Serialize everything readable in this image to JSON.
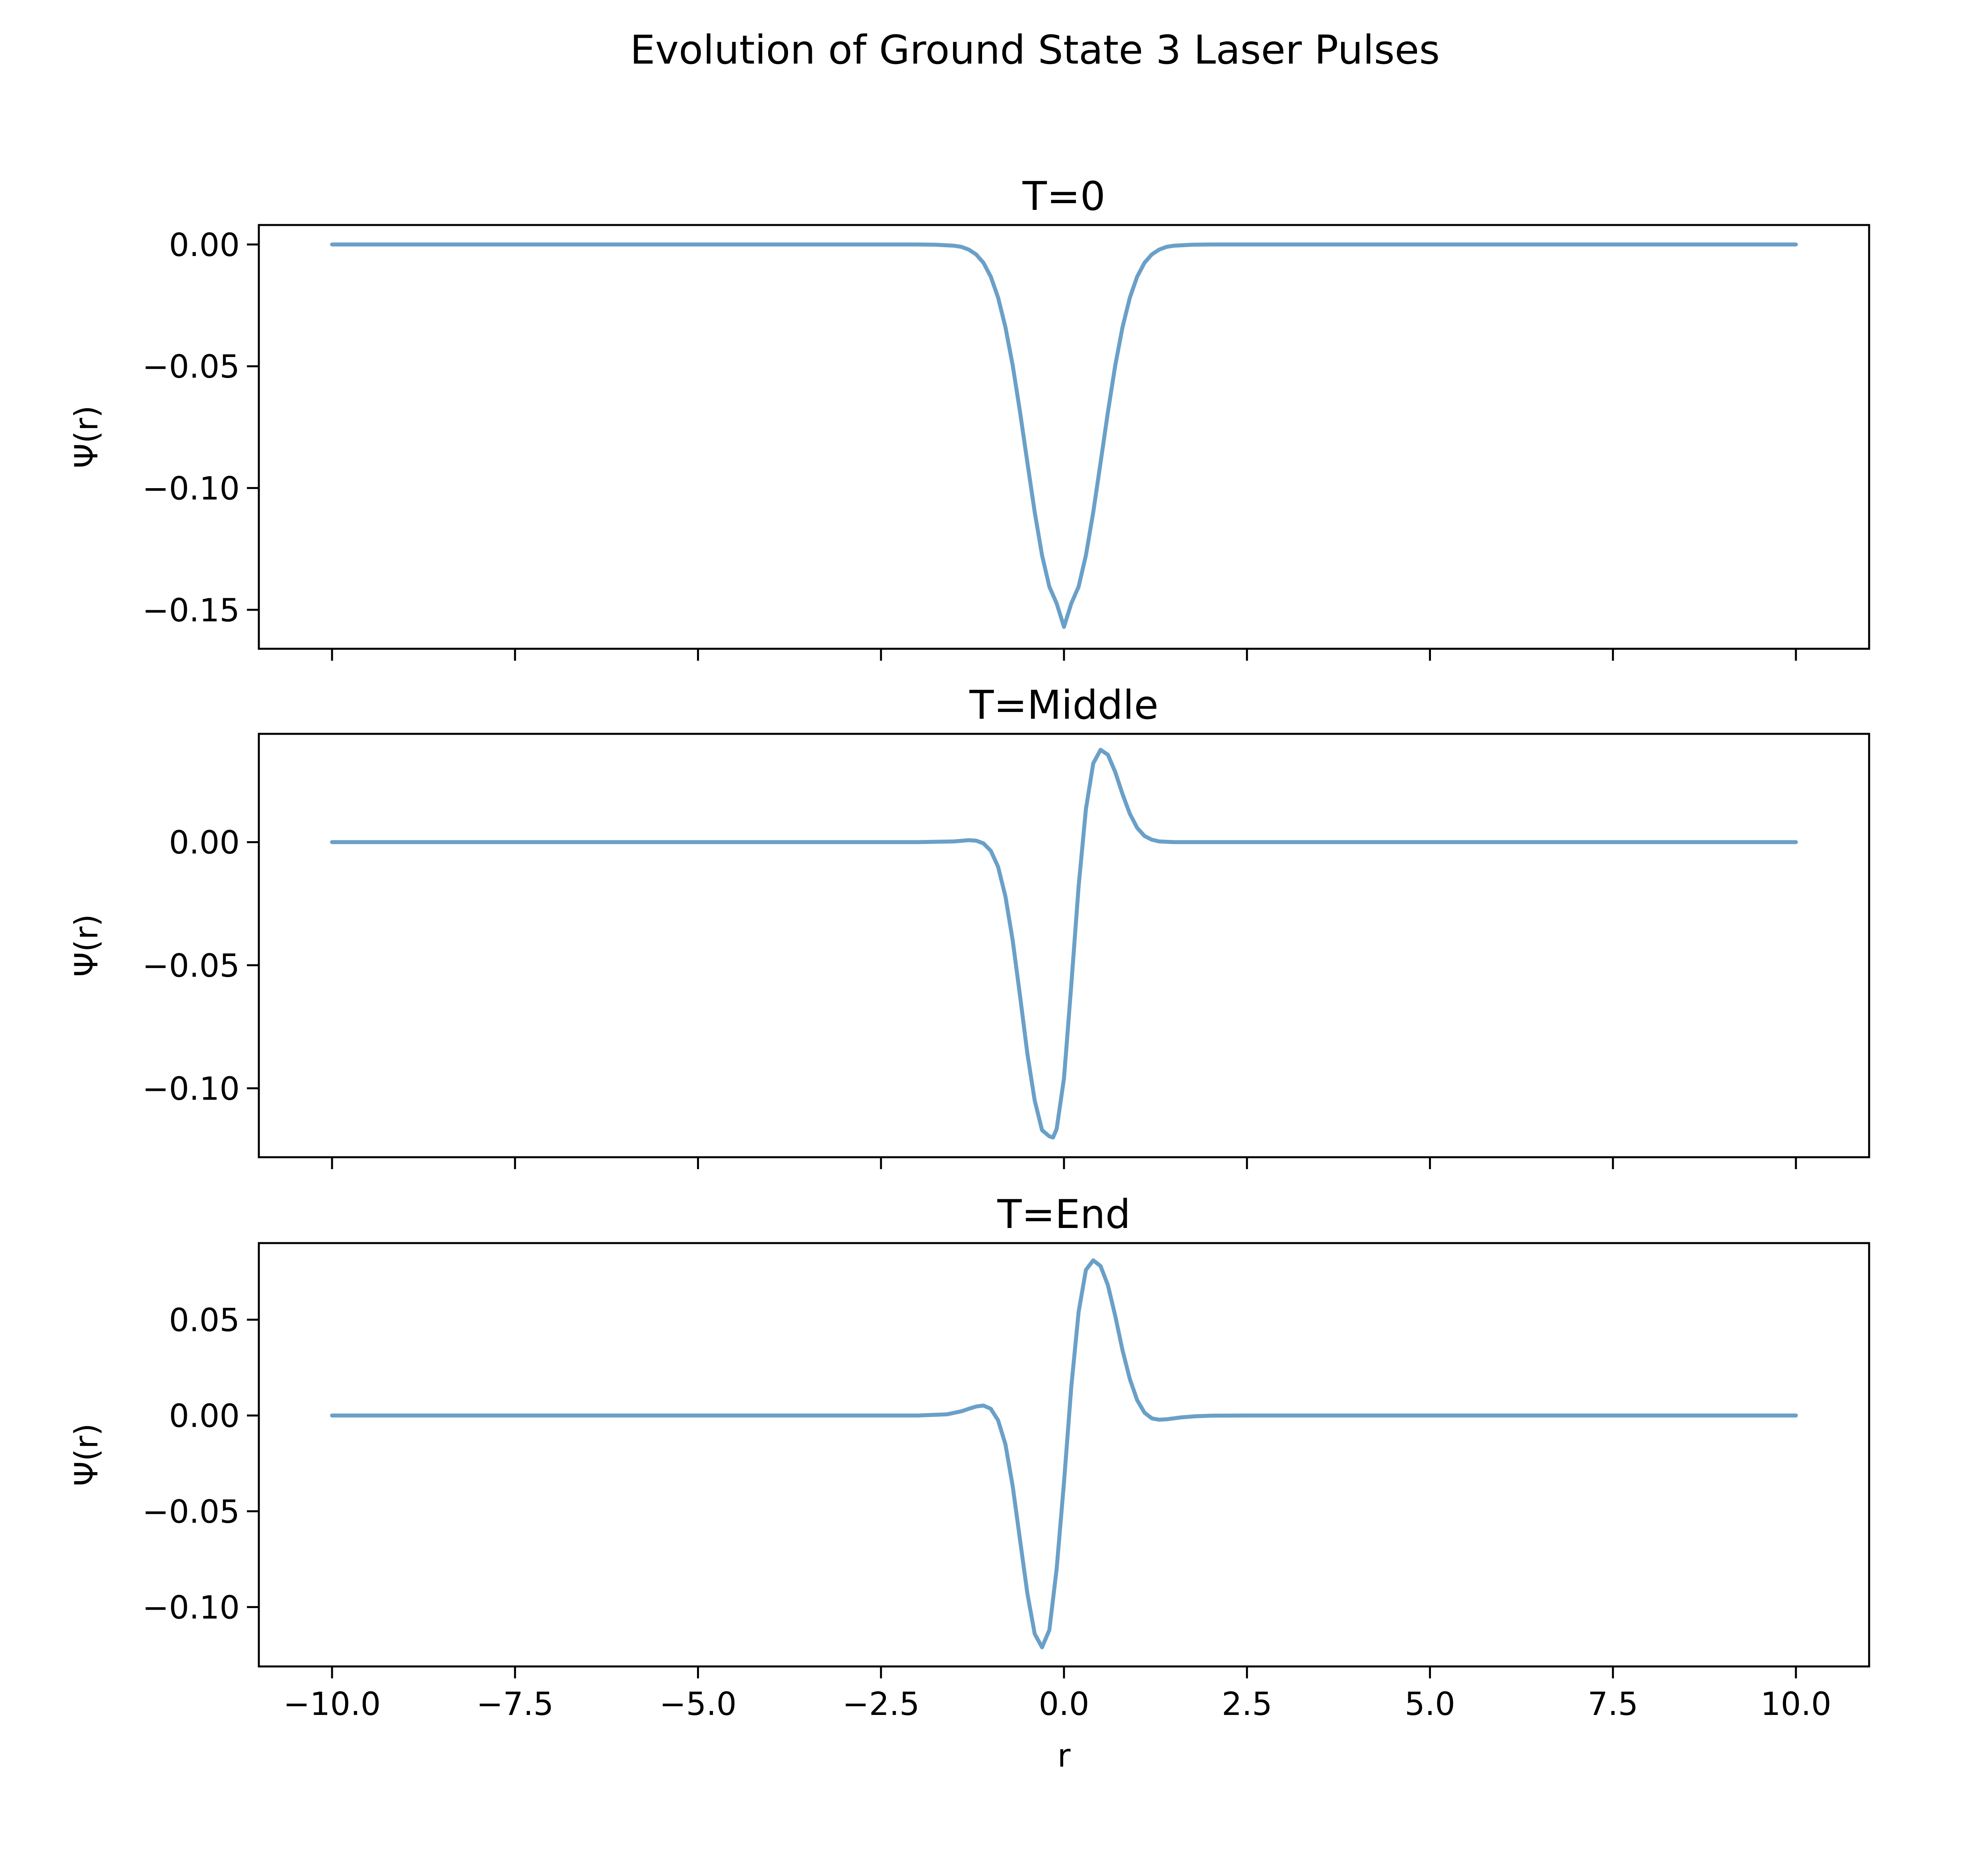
{
  "figure": {
    "title": "Evolution of Ground State 3 Laser Pulses",
    "colors": {
      "line": "#6aa0c8",
      "axes": "#000000",
      "background": "#ffffff"
    }
  },
  "chart_data": [
    {
      "type": "line",
      "title": "T=0",
      "xlabel": "",
      "ylabel": "Ψ(r)",
      "xlim": [
        -11,
        11
      ],
      "ylim": [
        -0.166,
        0.008
      ],
      "x_ticks": [
        -10,
        -7.5,
        -5,
        -2.5,
        0,
        2.5,
        5,
        7.5,
        10
      ],
      "x_tick_labels": [],
      "y_ticks": [
        0.0,
        -0.05,
        -0.1,
        -0.15
      ],
      "y_tick_labels": [
        "0.00",
        "−0.05",
        "−0.10",
        "−0.15"
      ],
      "grid": false,
      "series": [
        {
          "x": [
            -10,
            -2.5,
            -2,
            -1.75,
            -1.5,
            -1.4,
            -1.3,
            -1.2,
            -1.1,
            -1.0,
            -0.9,
            -0.8,
            -0.7,
            -0.6,
            -0.5,
            -0.4,
            -0.3,
            -0.2,
            -0.1,
            0.0,
            0.1,
            0.2,
            0.3,
            0.4,
            0.5,
            0.6,
            0.7,
            0.8,
            0.9,
            1.0,
            1.1,
            1.2,
            1.3,
            1.4,
            1.5,
            1.75,
            2,
            2.5,
            10
          ],
          "y": [
            0.0,
            0.0,
            0.0,
            -0.0001,
            -0.0005,
            -0.001,
            -0.0021,
            -0.0041,
            -0.0075,
            -0.0132,
            -0.0218,
            -0.0339,
            -0.0497,
            -0.0688,
            -0.0896,
            -0.1099,
            -0.1276,
            -0.1405,
            -0.1474,
            -0.157,
            -0.1474,
            -0.1405,
            -0.1276,
            -0.1099,
            -0.0896,
            -0.0688,
            -0.0497,
            -0.0339,
            -0.0218,
            -0.0132,
            -0.0075,
            -0.0041,
            -0.0021,
            -0.001,
            -0.0005,
            -0.0001,
            0.0,
            0.0,
            0.0
          ]
        }
      ]
    },
    {
      "type": "line",
      "title": "T=Middle",
      "xlabel": "",
      "ylabel": "Ψ(r)",
      "xlim": [
        -11,
        11
      ],
      "ylim": [
        -0.128,
        0.044
      ],
      "x_ticks": [
        -10,
        -7.5,
        -5,
        -2.5,
        0,
        2.5,
        5,
        7.5,
        10
      ],
      "x_tick_labels": [],
      "y_ticks": [
        0.0,
        -0.05,
        -0.1
      ],
      "y_tick_labels": [
        "0.00",
        "−0.05",
        "−0.10"
      ],
      "grid": false,
      "series": [
        {
          "x": [
            -10,
            -2.5,
            -2,
            -1.5,
            -1.3,
            -1.2,
            -1.1,
            -1.0,
            -0.9,
            -0.8,
            -0.7,
            -0.6,
            -0.5,
            -0.4,
            -0.3,
            -0.2,
            -0.15,
            -0.1,
            0.0,
            0.1,
            0.2,
            0.3,
            0.4,
            0.5,
            0.6,
            0.7,
            0.8,
            0.9,
            1.0,
            1.1,
            1.2,
            1.3,
            1.5,
            1.75,
            2,
            2.5,
            10
          ],
          "y": [
            0.0,
            0.0,
            0.0,
            0.0003,
            0.0008,
            0.0006,
            -0.0005,
            -0.0035,
            -0.01,
            -0.022,
            -0.04,
            -0.0625,
            -0.086,
            -0.105,
            -0.117,
            -0.1195,
            -0.12,
            -0.1165,
            -0.096,
            -0.058,
            -0.018,
            0.0135,
            0.032,
            0.0375,
            0.0355,
            0.0285,
            0.0195,
            0.0115,
            0.0058,
            0.0025,
            0.001,
            0.0003,
            0.0,
            0.0,
            0.0,
            0.0,
            0.0
          ]
        }
      ]
    },
    {
      "type": "line",
      "title": "T=End",
      "xlabel": "r",
      "ylabel": "Ψ(r)",
      "xlim": [
        -11,
        11
      ],
      "ylim": [
        -0.131,
        0.09
      ],
      "x_ticks": [
        -10,
        -7.5,
        -5,
        -2.5,
        0,
        2.5,
        5,
        7.5,
        10
      ],
      "x_tick_labels": [
        "−10.0",
        "−7.5",
        "−5.0",
        "−2.5",
        "0.0",
        "2.5",
        "5.0",
        "7.5",
        "10.0"
      ],
      "y_ticks": [
        0.05,
        0.0,
        -0.05,
        -0.1
      ],
      "y_tick_labels": [
        "0.05",
        "0.00",
        "−0.05",
        "−0.10"
      ],
      "grid": false,
      "series": [
        {
          "x": [
            -10,
            -2.5,
            -2,
            -1.6,
            -1.4,
            -1.3,
            -1.2,
            -1.1,
            -1.0,
            -0.9,
            -0.8,
            -0.7,
            -0.6,
            -0.5,
            -0.4,
            -0.3,
            -0.2,
            -0.1,
            0.0,
            0.1,
            0.2,
            0.3,
            0.4,
            0.5,
            0.6,
            0.7,
            0.8,
            0.9,
            1.0,
            1.1,
            1.2,
            1.3,
            1.4,
            1.6,
            1.8,
            2.0,
            2.5,
            10
          ],
          "y": [
            0.0,
            0.0,
            0.0,
            0.0006,
            0.0022,
            0.0035,
            0.0047,
            0.0052,
            0.0035,
            -0.0025,
            -0.015,
            -0.037,
            -0.065,
            -0.093,
            -0.114,
            -0.121,
            -0.112,
            -0.08,
            -0.035,
            0.015,
            0.054,
            0.076,
            0.081,
            0.078,
            0.068,
            0.052,
            0.034,
            0.019,
            0.008,
            0.0015,
            -0.0015,
            -0.0022,
            -0.002,
            -0.001,
            -0.0004,
            -0.0001,
            0.0,
            0.0
          ]
        }
      ]
    }
  ]
}
